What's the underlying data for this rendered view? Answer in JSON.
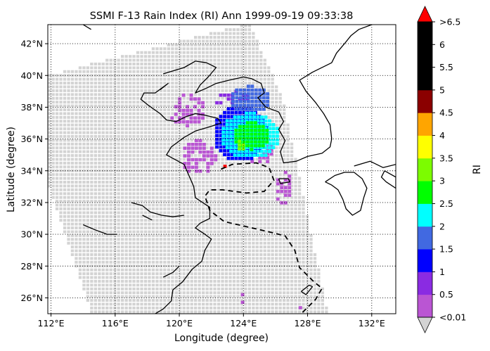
{
  "chart_data": {
    "type": "heatmap",
    "title": "SSMI F-13 Rain Index (RI) Ann 1999-09-19 09:33:38",
    "xlabel": "Longitude (degree)",
    "ylabel": "Latitude (degree)",
    "xlim": [
      111.8,
      133.5
    ],
    "ylim": [
      25.0,
      43.2
    ],
    "x_ticks": [
      {
        "value": 112,
        "label": "112°E"
      },
      {
        "value": 116,
        "label": "116°E"
      },
      {
        "value": 120,
        "label": "120°E"
      },
      {
        "value": 124,
        "label": "124°E"
      },
      {
        "value": 128,
        "label": "128°E"
      },
      {
        "value": 132,
        "label": "132°E"
      }
    ],
    "y_ticks": [
      {
        "value": 26,
        "label": "26°N"
      },
      {
        "value": 28,
        "label": "28°N"
      },
      {
        "value": 30,
        "label": "30°N"
      },
      {
        "value": 32,
        "label": "32°N"
      },
      {
        "value": 34,
        "label": "34°N"
      },
      {
        "value": 36,
        "label": "36°N"
      },
      {
        "value": 38,
        "label": "38°N"
      },
      {
        "value": 40,
        "label": "40°N"
      },
      {
        "value": 42,
        "label": "42°N"
      }
    ],
    "grid": true,
    "grid_style": "dotted",
    "swath": {
      "color": "#d3d3d3",
      "corners": [
        [
          111.8,
          40.0
        ],
        [
          124.4,
          43.3
        ],
        [
          126.5,
          38.5
        ],
        [
          129.3,
          25.0
        ],
        [
          114.6,
          25.0
        ],
        [
          111.8,
          33.2
        ]
      ]
    },
    "colorbar": {
      "label": "RI",
      "bounds": [
        0.01,
        0.5,
        1,
        1.5,
        2,
        2.5,
        3,
        3.5,
        4,
        4.5,
        5,
        5.5,
        6,
        6.5
      ],
      "colors": [
        "#ba55d3",
        "#8a2be2",
        "#0000ff",
        "#4169e1",
        "#00ffff",
        "#00ff00",
        "#7cfc00",
        "#ffff00",
        "#ffa500",
        "#8b0000",
        "#000000",
        "#000000",
        "#000000"
      ],
      "under_color": "#d3d3d3",
      "over_color": "#ff0000",
      "tick_labels": [
        "<0.01",
        "0.5",
        "1",
        "1.5",
        "2",
        "2.5",
        "3",
        "3.5",
        "4",
        "4.5",
        "5",
        "5.5",
        "6",
        ">6.5"
      ]
    },
    "rain_regions": [
      {
        "ri": 0.25,
        "lon": [
          119.2,
          121.6
        ],
        "lat": [
          36.7,
          38.7
        ]
      },
      {
        "ri": 0.25,
        "lon": [
          120.0,
          122.2
        ],
        "lat": [
          33.6,
          35.8
        ]
      },
      {
        "ri": 0.25,
        "lon": [
          125.8,
          127.0
        ],
        "lat": [
          31.6,
          33.9
        ]
      },
      {
        "ri": 0.25,
        "lon": [
          124.2,
          125.8
        ],
        "lat": [
          34.2,
          35.7
        ]
      },
      {
        "ri": 0.25,
        "lon": [
          123.6,
          124.0
        ],
        "lat": [
          25.1,
          26.3
        ]
      },
      {
        "ri": 0.25,
        "lon": [
          127.2,
          128.6
        ],
        "lat": [
          25.0,
          25.4
        ]
      },
      {
        "ri": 0.75,
        "lon": [
          122.0,
          124.6
        ],
        "lat": [
          37.9,
          38.9
        ]
      },
      {
        "ri": 1.25,
        "lon": [
          122.0,
          125.4
        ],
        "lat": [
          34.4,
          38.0
        ]
      },
      {
        "ri": 1.75,
        "lon": [
          123.0,
          125.6
        ],
        "lat": [
          37.5,
          39.2
        ]
      },
      {
        "ri": 2.25,
        "lon": [
          122.4,
          126.2
        ],
        "lat": [
          34.6,
          37.5
        ]
      },
      {
        "ri": 2.75,
        "lon": [
          123.2,
          125.6
        ],
        "lat": [
          35.2,
          36.9
        ]
      },
      {
        "ri": 3.25,
        "lon": [
          123.4,
          124.0
        ],
        "lat": [
          35.0,
          35.8
        ]
      },
      {
        "ri": 6.8,
        "lon": [
          122.5,
          122.8
        ],
        "lat": [
          33.9,
          34.2
        ]
      }
    ],
    "track": {
      "style": "dashed",
      "points": [
        [
          122.6,
          34.1
        ],
        [
          123.3,
          34.4
        ],
        [
          124.8,
          34.5
        ],
        [
          125.6,
          34.2
        ],
        [
          125.9,
          33.4
        ],
        [
          125.3,
          32.7
        ],
        [
          124.2,
          32.6
        ],
        [
          122.7,
          32.8
        ],
        [
          121.9,
          32.8
        ],
        [
          121.6,
          32.4
        ],
        [
          121.9,
          31.5
        ],
        [
          122.8,
          30.8
        ],
        [
          124.1,
          30.5
        ],
        [
          125.4,
          30.2
        ],
        [
          126.6,
          29.9
        ],
        [
          127.2,
          29.0
        ],
        [
          127.5,
          27.9
        ],
        [
          127.9,
          27.5
        ],
        [
          128.4,
          27.0
        ],
        [
          128.9,
          26.6
        ],
        [
          128.5,
          25.9
        ],
        [
          127.9,
          25.3
        ],
        [
          127.6,
          25.0
        ]
      ]
    }
  }
}
